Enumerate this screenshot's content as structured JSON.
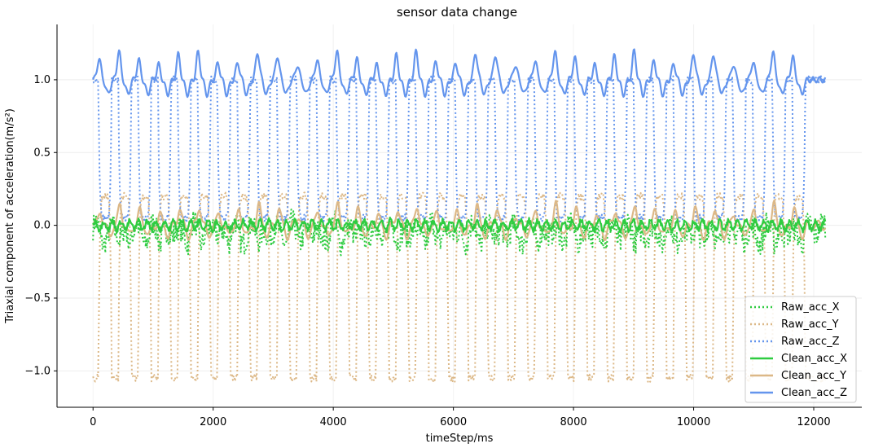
{
  "chart_data": {
    "type": "line",
    "title": "sensor data change",
    "xlabel": "timeStep/ms",
    "ylabel": "Triaxial component of acceleration(m/s²)",
    "xlim": [
      -600,
      12800
    ],
    "ylim": [
      -1.25,
      1.38
    ],
    "x_ticks": [
      0,
      2000,
      4000,
      6000,
      8000,
      10000,
      12000
    ],
    "x_tick_labels": [
      "0",
      "2000",
      "4000",
      "6000",
      "8000",
      "10000",
      "12000"
    ],
    "y_ticks": [
      -1.0,
      -0.5,
      0.0,
      0.5,
      1.0
    ],
    "y_tick_labels": [
      "−1.0",
      "−0.5",
      "0.0",
      "0.5",
      "1.0"
    ],
    "grid": true,
    "legend_position": "bottom-right",
    "x_range": [
      0,
      12200
    ],
    "step_count": 36,
    "first_step_ms": 200,
    "last_step_ms": 11750,
    "series": [
      {
        "name": "Raw_acc_X",
        "color": "#2ecc40",
        "style": "dotted",
        "baseline": -0.02,
        "amplitude": 0.12
      },
      {
        "name": "Raw_acc_Y",
        "color": "#dcb887",
        "style": "dotted",
        "low": -1.05,
        "high": 0.2
      },
      {
        "name": "Raw_acc_Z",
        "color": "#6495ed",
        "style": "dotted",
        "low": 0.1,
        "high": 1.0
      },
      {
        "name": "Clean_acc_X",
        "color": "#2ecc40",
        "style": "solid",
        "baseline": 0.0,
        "amplitude": 0.05
      },
      {
        "name": "Clean_acc_Y",
        "color": "#dcb887",
        "style": "solid",
        "baseline": 0.0,
        "amplitude": 0.13
      },
      {
        "name": "Clean_acc_Z",
        "color": "#6495ed",
        "style": "solid",
        "baseline": 1.0,
        "amplitude": 0.15
      }
    ]
  }
}
